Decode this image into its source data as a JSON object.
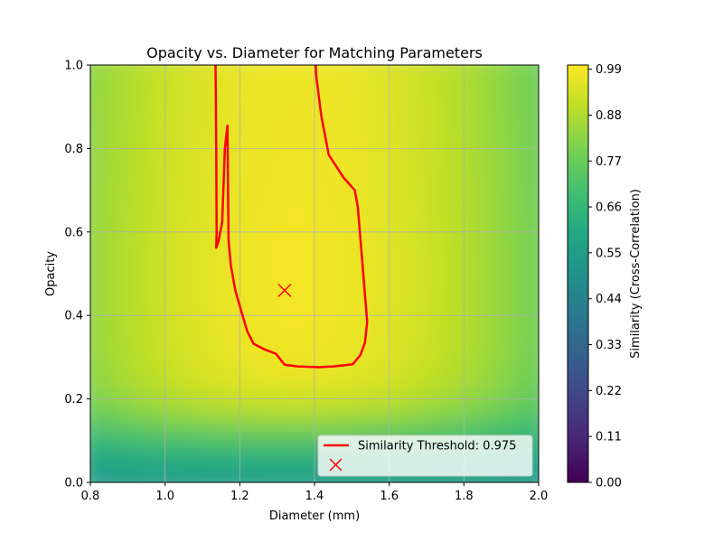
{
  "chart_data": {
    "type": "heatmap",
    "title": "Opacity vs. Diameter for Matching Parameters",
    "xlabel": "Diameter (mm)",
    "ylabel": "Opacity",
    "xlim": [
      0.8,
      2.0
    ],
    "ylim": [
      0.0,
      1.0
    ],
    "x_ticks": [
      "0.8",
      "1.0",
      "1.2",
      "1.4",
      "1.6",
      "1.8",
      "2.0"
    ],
    "y_ticks": [
      "0.0",
      "0.2",
      "0.4",
      "0.6",
      "0.8",
      "1.0"
    ],
    "grid": true,
    "colormap": "viridis",
    "colorbar": {
      "label": "Similarity (Cross-Correlation)",
      "ticks": [
        "0.00",
        "0.11",
        "0.22",
        "0.33",
        "0.44",
        "0.55",
        "0.66",
        "0.77",
        "0.88",
        "0.99"
      ],
      "range": [
        0.0,
        1.0
      ]
    },
    "contour": {
      "label": "Similarity Threshold: 0.975",
      "level": 0.975,
      "color": "#ff0000",
      "points": [
        [
          1.135,
          1.0
        ],
        [
          1.137,
          0.8
        ],
        [
          1.138,
          0.6
        ],
        [
          1.137,
          0.562
        ],
        [
          1.143,
          0.578
        ],
        [
          1.153,
          0.625
        ],
        [
          1.16,
          0.8
        ],
        [
          1.167,
          0.855
        ],
        [
          1.168,
          0.75
        ],
        [
          1.17,
          0.58
        ],
        [
          1.176,
          0.52
        ],
        [
          1.188,
          0.46
        ],
        [
          1.204,
          0.41
        ],
        [
          1.22,
          0.362
        ],
        [
          1.237,
          0.332
        ],
        [
          1.268,
          0.318
        ],
        [
          1.297,
          0.308
        ],
        [
          1.32,
          0.282
        ],
        [
          1.355,
          0.278
        ],
        [
          1.412,
          0.276
        ],
        [
          1.451,
          0.278
        ],
        [
          1.502,
          0.283
        ],
        [
          1.523,
          0.305
        ],
        [
          1.535,
          0.335
        ],
        [
          1.541,
          0.385
        ],
        [
          1.535,
          0.45
        ],
        [
          1.526,
          0.55
        ],
        [
          1.516,
          0.66
        ],
        [
          1.508,
          0.7
        ],
        [
          1.478,
          0.73
        ],
        [
          1.438,
          0.785
        ],
        [
          1.418,
          0.88
        ],
        [
          1.405,
          0.97
        ],
        [
          1.403,
          1.0
        ]
      ]
    },
    "marker": {
      "x": 1.32,
      "y": 0.46,
      "symbol": "x",
      "color": "#ff0000"
    },
    "legend": {
      "placement": "lower right",
      "entries": [
        "Similarity Threshold: 0.975",
        ""
      ]
    }
  }
}
